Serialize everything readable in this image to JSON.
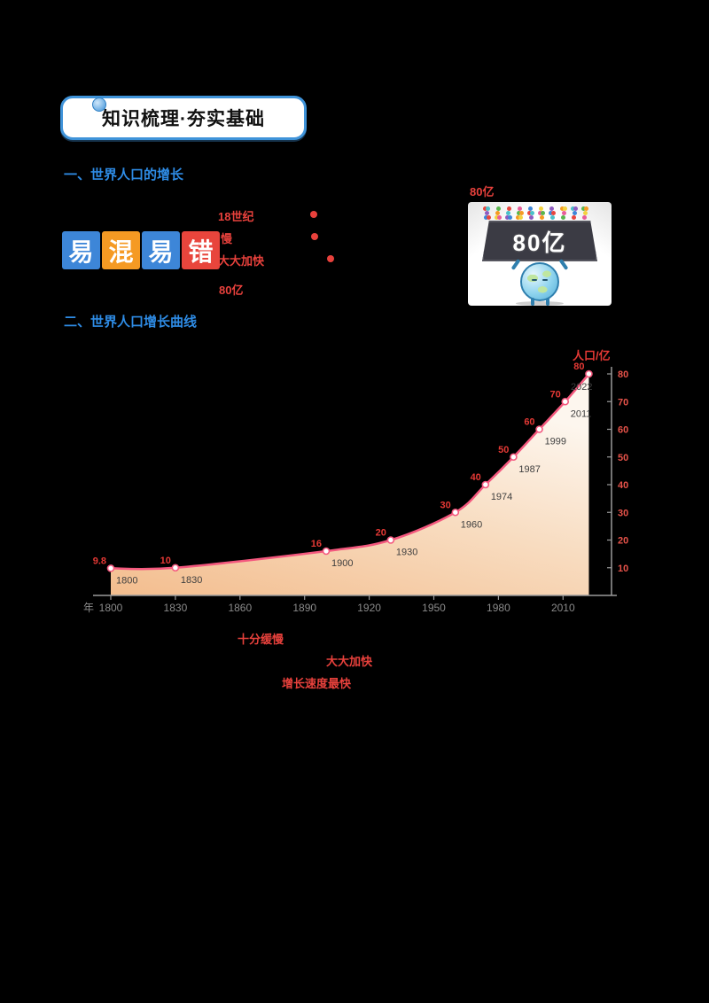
{
  "page": {
    "background": "#000000"
  },
  "badge": {
    "label": "知识梳理·夯实基础",
    "border_color": "#3f93d9"
  },
  "section1": {
    "title": "一、世界人口的增长"
  },
  "section2": {
    "title": "二、世界人口增长曲线"
  },
  "mixup_badge": {
    "chars": [
      "易",
      "混",
      "易",
      "错"
    ],
    "colors": [
      "#3d86d8",
      "#f59a23",
      "#3d86d8",
      "#e8453c"
    ]
  },
  "answers": {
    "top_right": "80亿",
    "a1": "18世纪",
    "a2": "慢",
    "a3": "大大加快",
    "a4": "80亿"
  },
  "illustration": {
    "sign_text": "80亿",
    "crowd_colors": [
      "#e8453c",
      "#f59a23",
      "#3d86d8",
      "#59b54d",
      "#8e5bc0",
      "#e85c9a",
      "#4ac0c9",
      "#f3d23e"
    ]
  },
  "annotations": {
    "phase1": "十分缓慢",
    "phase2": "大大加快",
    "phase3": "增长速度最快"
  },
  "chart_data": {
    "type": "line",
    "title": "世界人口增长曲线",
    "ylabel": "人口/亿",
    "xlabel_unit": "年",
    "x_ticks": [
      1800,
      1830,
      1860,
      1890,
      1920,
      1950,
      1980,
      2010
    ],
    "y_ticks": [
      10,
      20,
      30,
      40,
      50,
      60,
      70,
      80
    ],
    "xlim": [
      1795,
      2035
    ],
    "ylim": [
      0,
      80
    ],
    "grid": false,
    "legend": false,
    "line_color": "#f4587e",
    "value_label_color": "#e53935",
    "ytick_label_color": "#e8534a",
    "xtick_label_color": "#8a8a8a",
    "year_label_color": "#3f3f3f",
    "axis_color": "#9a9a9a",
    "area_gradient": [
      "#f3bd8e",
      "#f8dcc0",
      "#fdf6ee"
    ],
    "points": [
      {
        "year": 1800,
        "value": 9.8
      },
      {
        "year": 1830,
        "value": 10
      },
      {
        "year": 1900,
        "value": 16
      },
      {
        "year": 1930,
        "value": 20
      },
      {
        "year": 1960,
        "value": 30
      },
      {
        "year": 1974,
        "value": 40
      },
      {
        "year": 1987,
        "value": 50
      },
      {
        "year": 1999,
        "value": 60
      },
      {
        "year": 2011,
        "value": 70
      },
      {
        "year": 2022,
        "value": 80
      }
    ]
  }
}
